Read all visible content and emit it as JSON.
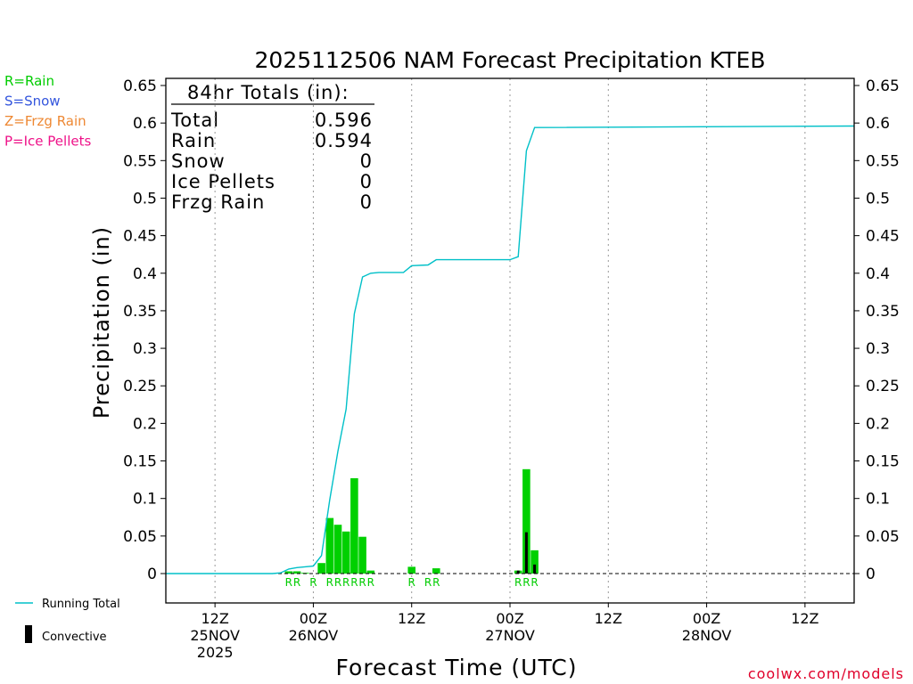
{
  "chart_data": {
    "type": "bar+line",
    "title": "2025112506 NAM Forecast Precipitation KTEB",
    "ylabel": "Precipitation (in)",
    "xlabel": "Forecast Time (UTC)",
    "ylim": [
      -0.04,
      0.65
    ],
    "yticks": [
      "0.65",
      "0.6",
      "0.55",
      "0.5",
      "0.45",
      "0.4",
      "0.35",
      "0.3",
      "0.25",
      "0.2",
      "0.15",
      "0.1",
      "0.05",
      "0"
    ],
    "xlim_hours": [
      0,
      84
    ],
    "xticks": [
      {
        "hour": 6,
        "line1": "12Z",
        "line2": "25NOV",
        "line3": "2025"
      },
      {
        "hour": 18,
        "line1": "00Z",
        "line2": "26NOV",
        "line3": ""
      },
      {
        "hour": 30,
        "line1": "12Z",
        "line2": "",
        "line3": ""
      },
      {
        "hour": 42,
        "line1": "00Z",
        "line2": "27NOV",
        "line3": ""
      },
      {
        "hour": 54,
        "line1": "12Z",
        "line2": "",
        "line3": ""
      },
      {
        "hour": 66,
        "line1": "00Z",
        "line2": "28NOV",
        "line3": ""
      },
      {
        "hour": 78,
        "line1": "12Z",
        "line2": "",
        "line3": ""
      }
    ],
    "legend_types": [
      {
        "text": "R=Rain",
        "color": "#00cc00"
      },
      {
        "text": "S=Snow",
        "color": "#3355dd"
      },
      {
        "text": "Z=Frzg Rain",
        "color": "#ee8833"
      },
      {
        "text": "P=Ice Pellets",
        "color": "#ee1188"
      }
    ],
    "legend_series": [
      {
        "text": "Running Total",
        "color": "#00c0c8"
      },
      {
        "text": "Convective",
        "color": "#000000"
      }
    ],
    "totals": {
      "header": "84hr Totals (in):",
      "rows": [
        {
          "label": "Total",
          "value": "0.596"
        },
        {
          "label": "Rain",
          "value": "0.594"
        },
        {
          "label": "Snow",
          "value": "0"
        },
        {
          "label": "Ice Pellets",
          "value": "0"
        },
        {
          "label": "Frzg Rain",
          "value": "0"
        }
      ]
    },
    "bars": [
      {
        "hour": 15,
        "value": 0.003,
        "conv": 0
      },
      {
        "hour": 16,
        "value": 0.003,
        "conv": 0
      },
      {
        "hour": 17,
        "value": 0.001,
        "conv": 0
      },
      {
        "hour": 19,
        "value": 0.014,
        "conv": 0
      },
      {
        "hour": 20,
        "value": 0.074,
        "conv": 0
      },
      {
        "hour": 21,
        "value": 0.065,
        "conv": 0
      },
      {
        "hour": 22,
        "value": 0.056,
        "conv": 0
      },
      {
        "hour": 23,
        "value": 0.127,
        "conv": 0
      },
      {
        "hour": 24,
        "value": 0.049,
        "conv": 0
      },
      {
        "hour": 25,
        "value": 0.004,
        "conv": 0
      },
      {
        "hour": 30,
        "value": 0.009,
        "conv": 0
      },
      {
        "hour": 33,
        "value": 0.007,
        "conv": 0
      },
      {
        "hour": 43,
        "value": 0.004,
        "conv": 0.004
      },
      {
        "hour": 44,
        "value": 0.139,
        "conv": 0.055
      },
      {
        "hour": 45,
        "value": 0.031,
        "conv": 0.012
      }
    ],
    "ptype_labels": [
      {
        "hour": 15,
        "text": "R"
      },
      {
        "hour": 16,
        "text": "R"
      },
      {
        "hour": 18,
        "text": "R"
      },
      {
        "hour": 20,
        "text": "R"
      },
      {
        "hour": 21,
        "text": "R"
      },
      {
        "hour": 22,
        "text": "R"
      },
      {
        "hour": 23,
        "text": "R"
      },
      {
        "hour": 24,
        "text": "R"
      },
      {
        "hour": 25,
        "text": "R"
      },
      {
        "hour": 30,
        "text": "R"
      },
      {
        "hour": 32,
        "text": "R"
      },
      {
        "hour": 33,
        "text": "R"
      },
      {
        "hour": 43,
        "text": "R"
      },
      {
        "hour": 44,
        "text": "R"
      },
      {
        "hour": 45,
        "text": "R"
      }
    ],
    "running_total": [
      {
        "hour": 0,
        "value": 0
      },
      {
        "hour": 13,
        "value": 0
      },
      {
        "hour": 14,
        "value": 0.001
      },
      {
        "hour": 15,
        "value": 0.006
      },
      {
        "hour": 16,
        "value": 0.008
      },
      {
        "hour": 17,
        "value": 0.009
      },
      {
        "hour": 18,
        "value": 0.01
      },
      {
        "hour": 19,
        "value": 0.024
      },
      {
        "hour": 20,
        "value": 0.098
      },
      {
        "hour": 21,
        "value": 0.163
      },
      {
        "hour": 22,
        "value": 0.219
      },
      {
        "hour": 23,
        "value": 0.346
      },
      {
        "hour": 24,
        "value": 0.395
      },
      {
        "hour": 25,
        "value": 0.4
      },
      {
        "hour": 26,
        "value": 0.401
      },
      {
        "hour": 29,
        "value": 0.401
      },
      {
        "hour": 30,
        "value": 0.41
      },
      {
        "hour": 32,
        "value": 0.411
      },
      {
        "hour": 33,
        "value": 0.418
      },
      {
        "hour": 42,
        "value": 0.418
      },
      {
        "hour": 43,
        "value": 0.422
      },
      {
        "hour": 44,
        "value": 0.563
      },
      {
        "hour": 45,
        "value": 0.594
      },
      {
        "hour": 84,
        "value": 0.596
      }
    ]
  },
  "credit": "coolwx.com/models"
}
